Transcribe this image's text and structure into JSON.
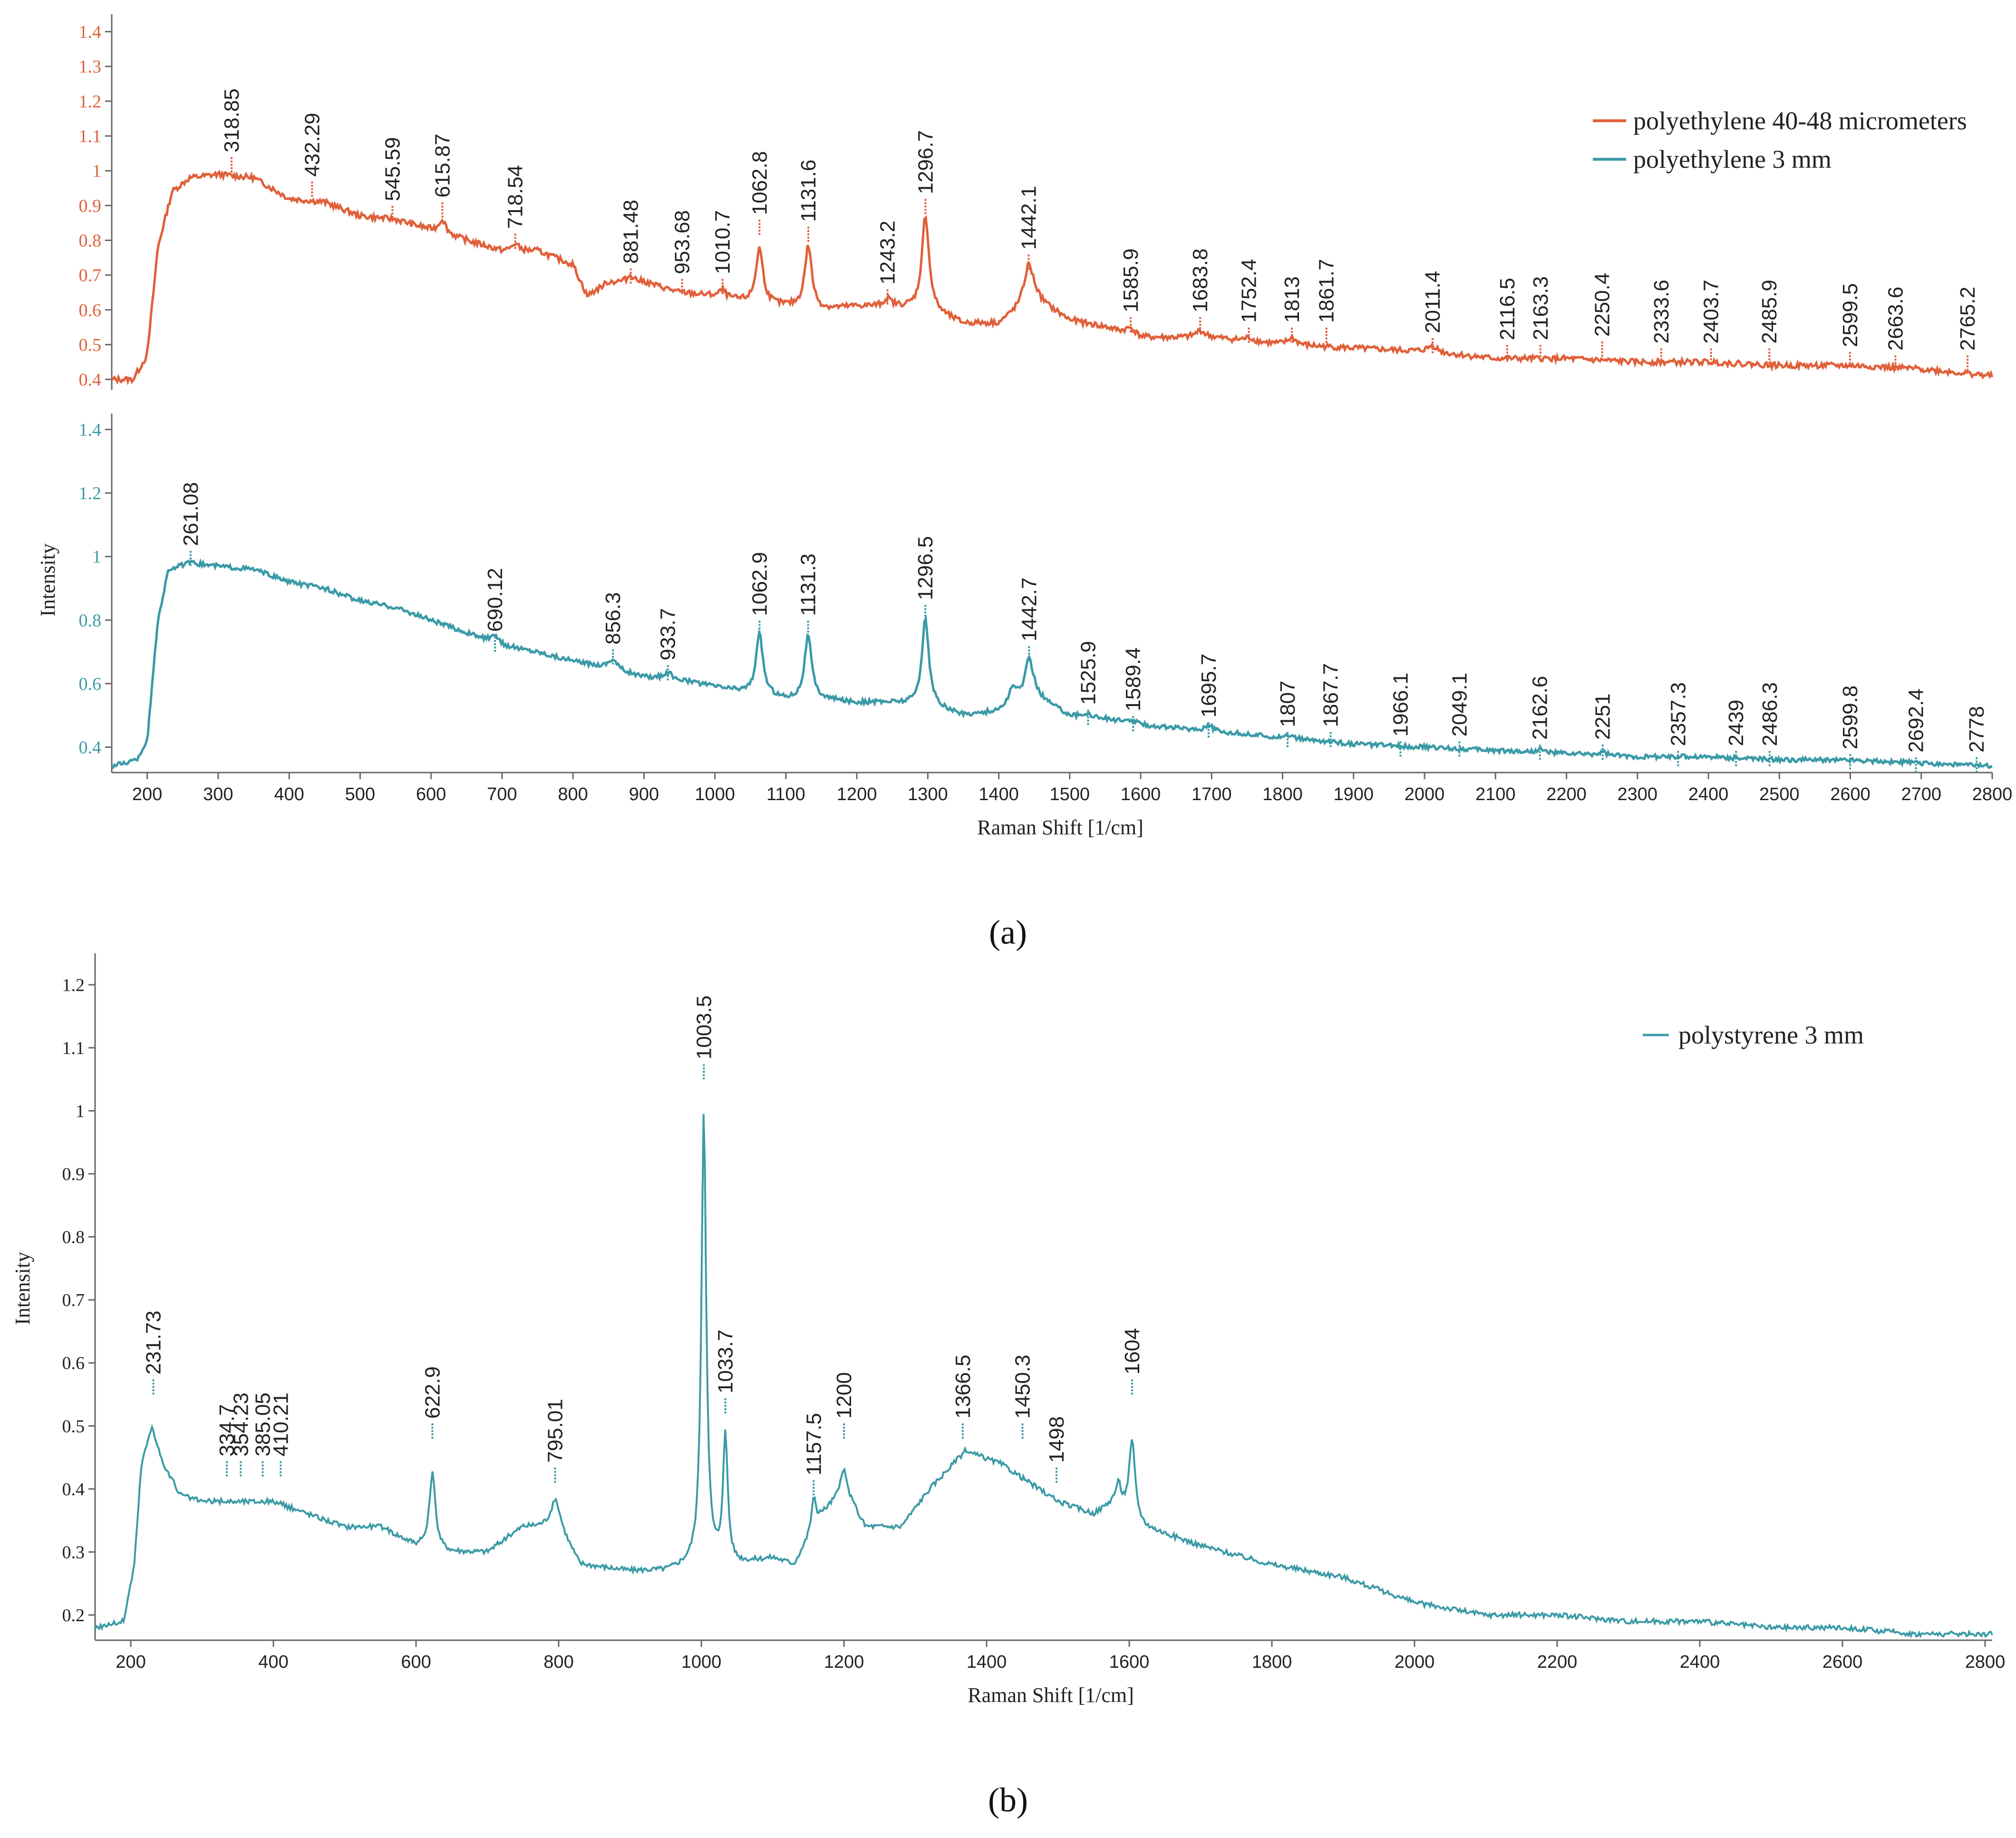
{
  "colors": {
    "pe_small": "#e0603a",
    "pe_large": "#3a9aa6",
    "ps": "#3a9aa6",
    "axis": "#666666",
    "text": "#222222"
  },
  "chart_data": [
    {
      "id": "a-top",
      "type": "line",
      "panel_label": "(a)",
      "series_name": "polyethylene 40-48 micrometers",
      "ylim": [
        0.37,
        1.45
      ],
      "xlim": [
        150,
        2800
      ],
      "yticks": [
        0.4,
        0.5,
        0.6,
        0.7,
        0.8,
        0.9,
        1,
        1.1,
        1.2,
        1.3,
        1.4
      ],
      "ytick_labels": [
        "0.4",
        "0.5",
        "0.6",
        "0.7",
        "0.8",
        "0.9",
        "1",
        "1.1",
        "1.2",
        "1.3",
        "1.4"
      ],
      "baseline": [
        [
          150,
          0.4
        ],
        [
          180,
          0.4
        ],
        [
          200,
          0.47
        ],
        [
          215,
          0.78
        ],
        [
          235,
          0.94
        ],
        [
          260,
          0.98
        ],
        [
          300,
          0.99
        ],
        [
          350,
          0.98
        ],
        [
          400,
          0.92
        ],
        [
          450,
          0.91
        ],
        [
          500,
          0.87
        ],
        [
          550,
          0.86
        ],
        [
          600,
          0.83
        ],
        [
          650,
          0.8
        ],
        [
          700,
          0.77
        ],
        [
          750,
          0.77
        ],
        [
          800,
          0.73
        ],
        [
          820,
          0.64
        ],
        [
          850,
          0.68
        ],
        [
          900,
          0.68
        ],
        [
          950,
          0.65
        ],
        [
          1000,
          0.64
        ],
        [
          1050,
          0.62
        ],
        [
          1100,
          0.61
        ],
        [
          1150,
          0.6
        ],
        [
          1200,
          0.61
        ],
        [
          1250,
          0.61
        ],
        [
          1300,
          0.6
        ],
        [
          1350,
          0.56
        ],
        [
          1400,
          0.56
        ],
        [
          1450,
          0.63
        ],
        [
          1500,
          0.57
        ],
        [
          1550,
          0.55
        ],
        [
          1600,
          0.52
        ],
        [
          1700,
          0.52
        ],
        [
          1800,
          0.5
        ],
        [
          1900,
          0.49
        ],
        [
          2000,
          0.48
        ],
        [
          2100,
          0.46
        ],
        [
          2200,
          0.46
        ],
        [
          2300,
          0.45
        ],
        [
          2400,
          0.45
        ],
        [
          2500,
          0.44
        ],
        [
          2600,
          0.44
        ],
        [
          2700,
          0.43
        ],
        [
          2800,
          0.41
        ]
      ],
      "peaks": [
        [
          615.87,
          0.04,
          6
        ],
        [
          718.54,
          0.02,
          6
        ],
        [
          881.48,
          0.02,
          6
        ],
        [
          1010.7,
          0.02,
          5
        ],
        [
          1062.8,
          0.16,
          6
        ],
        [
          1131.6,
          0.18,
          6
        ],
        [
          1243.2,
          0.02,
          6
        ],
        [
          1296.7,
          0.27,
          6
        ],
        [
          1442.1,
          0.11,
          8
        ],
        [
          1585.9,
          0.02,
          8
        ],
        [
          1683.8,
          0.02,
          8
        ],
        [
          1752.4,
          0.01,
          8
        ],
        [
          1813,
          0.02,
          8
        ],
        [
          2011.4,
          0.02,
          8
        ]
      ],
      "noise": 0.008,
      "labels": [
        {
          "x": 318.85,
          "text": "318.85",
          "level": 1.05
        },
        {
          "x": 432.29,
          "text": "432.29",
          "level": 0.98
        },
        {
          "x": 545.59,
          "text": "545.59",
          "level": 0.91
        },
        {
          "x": 615.87,
          "text": "615.87",
          "level": 0.92
        },
        {
          "x": 718.54,
          "text": "718.54",
          "level": 0.83
        },
        {
          "x": 881.48,
          "text": "881.48",
          "level": 0.73
        },
        {
          "x": 953.68,
          "text": "953.68",
          "level": 0.7
        },
        {
          "x": 1010.7,
          "text": "1010.7",
          "level": 0.7
        },
        {
          "x": 1062.8,
          "text": "1062.8",
          "level": 0.87
        },
        {
          "x": 1131.6,
          "text": "1131.6",
          "level": 0.85
        },
        {
          "x": 1243.2,
          "text": "1243.2",
          "level": 0.67
        },
        {
          "x": 1296.7,
          "text": "1296.7",
          "level": 0.93
        },
        {
          "x": 1442.1,
          "text": "1442.1",
          "level": 0.77
        },
        {
          "x": 1585.9,
          "text": "1585.9",
          "level": 0.59
        },
        {
          "x": 1683.8,
          "text": "1683.8",
          "level": 0.59
        },
        {
          "x": 1752.4,
          "text": "1752.4",
          "level": 0.56
        },
        {
          "x": 1813,
          "text": "1813",
          "level": 0.56
        },
        {
          "x": 1861.7,
          "text": "1861.7",
          "level": 0.56
        },
        {
          "x": 2011.4,
          "text": "2011.4",
          "level": 0.53
        },
        {
          "x": 2116.5,
          "text": "2116.5",
          "level": 0.51
        },
        {
          "x": 2163.3,
          "text": "2163.3",
          "level": 0.51
        },
        {
          "x": 2250.4,
          "text": "2250.4",
          "level": 0.52
        },
        {
          "x": 2333.6,
          "text": "2333.6",
          "level": 0.5
        },
        {
          "x": 2403.7,
          "text": "2403.7",
          "level": 0.5
        },
        {
          "x": 2485.9,
          "text": "2485.9",
          "level": 0.5
        },
        {
          "x": 2599.5,
          "text": "2599.5",
          "level": 0.49
        },
        {
          "x": 2663.6,
          "text": "2663.6",
          "level": 0.48
        },
        {
          "x": 2765.2,
          "text": "2765.2",
          "level": 0.48
        }
      ]
    },
    {
      "id": "a-bottom",
      "type": "line",
      "series_name": "polyethylene 3 mm",
      "ylim": [
        0.32,
        1.45
      ],
      "xlim": [
        150,
        2800
      ],
      "yticks": [
        0.4,
        0.6,
        0.8,
        1,
        1.2,
        1.4
      ],
      "ytick_labels": [
        "0.4",
        "0.6",
        "0.8",
        "1",
        "1.2",
        "1.4"
      ],
      "ylabel": "Intensity",
      "xlabel": "Raman Shift [1/cm]",
      "xticks": [
        200,
        300,
        400,
        500,
        600,
        700,
        800,
        900,
        1000,
        1100,
        1200,
        1300,
        1400,
        1500,
        1600,
        1700,
        1800,
        1900,
        2000,
        2100,
        2200,
        2300,
        2400,
        2500,
        2600,
        2700,
        2800
      ],
      "xtick_labels": [
        "200",
        "300",
        "400",
        "500",
        "600",
        "700",
        "800",
        "900",
        "1000",
        "1100",
        "1200",
        "1300",
        "1400",
        "1500",
        "1600",
        "1700",
        "1800",
        "1900",
        "2000",
        "2100",
        "2200",
        "2300",
        "2400",
        "2500",
        "2600",
        "2700",
        "2800"
      ],
      "baseline": [
        [
          150,
          0.34
        ],
        [
          185,
          0.36
        ],
        [
          200,
          0.42
        ],
        [
          215,
          0.8
        ],
        [
          230,
          0.96
        ],
        [
          260,
          0.98
        ],
        [
          300,
          0.97
        ],
        [
          350,
          0.96
        ],
        [
          400,
          0.92
        ],
        [
          450,
          0.9
        ],
        [
          500,
          0.86
        ],
        [
          550,
          0.84
        ],
        [
          600,
          0.8
        ],
        [
          650,
          0.76
        ],
        [
          700,
          0.72
        ],
        [
          750,
          0.7
        ],
        [
          800,
          0.67
        ],
        [
          850,
          0.65
        ],
        [
          900,
          0.62
        ],
        [
          950,
          0.61
        ],
        [
          1000,
          0.59
        ],
        [
          1050,
          0.57
        ],
        [
          1100,
          0.55
        ],
        [
          1150,
          0.55
        ],
        [
          1200,
          0.54
        ],
        [
          1250,
          0.54
        ],
        [
          1300,
          0.53
        ],
        [
          1350,
          0.5
        ],
        [
          1400,
          0.51
        ],
        [
          1450,
          0.56
        ],
        [
          1500,
          0.5
        ],
        [
          1550,
          0.49
        ],
        [
          1600,
          0.47
        ],
        [
          1700,
          0.45
        ],
        [
          1800,
          0.43
        ],
        [
          1900,
          0.41
        ],
        [
          2000,
          0.4
        ],
        [
          2100,
          0.39
        ],
        [
          2200,
          0.38
        ],
        [
          2300,
          0.37
        ],
        [
          2400,
          0.37
        ],
        [
          2500,
          0.36
        ],
        [
          2600,
          0.36
        ],
        [
          2700,
          0.35
        ],
        [
          2800,
          0.34
        ]
      ],
      "peaks": [
        [
          690.12,
          0.02,
          8
        ],
        [
          856.3,
          0.03,
          8
        ],
        [
          933.7,
          0.02,
          8
        ],
        [
          1062.9,
          0.19,
          6
        ],
        [
          1131.3,
          0.2,
          6
        ],
        [
          1296.5,
          0.27,
          6
        ],
        [
          1420,
          0.05,
          8
        ],
        [
          1442.7,
          0.12,
          7
        ],
        [
          1525.9,
          0.01,
          6
        ],
        [
          1589.4,
          0.01,
          6
        ],
        [
          1695.7,
          0.02,
          6
        ],
        [
          1807,
          0.01,
          6
        ],
        [
          2162.6,
          0.01,
          6
        ],
        [
          2251,
          0.01,
          6
        ]
      ],
      "noise": 0.007,
      "labels": [
        {
          "x": 261.08,
          "text": "261.08",
          "level": 1.03
        },
        {
          "x": 690.12,
          "text": "690.12",
          "level": 0.76
        },
        {
          "x": 856.3,
          "text": "856.3",
          "level": 0.72
        },
        {
          "x": 933.7,
          "text": "933.7",
          "level": 0.67
        },
        {
          "x": 1062.9,
          "text": "1062.9",
          "level": 0.81
        },
        {
          "x": 1131.3,
          "text": "1131.3",
          "level": 0.81
        },
        {
          "x": 1296.5,
          "text": "1296.5",
          "level": 0.86
        },
        {
          "x": 1442.7,
          "text": "1442.7",
          "level": 0.73
        },
        {
          "x": 1525.9,
          "text": "1525.9",
          "level": 0.53
        },
        {
          "x": 1589.4,
          "text": "1589.4",
          "level": 0.51
        },
        {
          "x": 1695.7,
          "text": "1695.7",
          "level": 0.49
        },
        {
          "x": 1807,
          "text": "1807",
          "level": 0.46
        },
        {
          "x": 1867.7,
          "text": "1867.7",
          "level": 0.46
        },
        {
          "x": 1966.1,
          "text": "1966.1",
          "level": 0.43
        },
        {
          "x": 2049.1,
          "text": "2049.1",
          "level": 0.43
        },
        {
          "x": 2162.6,
          "text": "2162.6",
          "level": 0.42
        },
        {
          "x": 2251,
          "text": "2251",
          "level": 0.42
        },
        {
          "x": 2357.3,
          "text": "2357.3",
          "level": 0.4
        },
        {
          "x": 2439,
          "text": "2439",
          "level": 0.4
        },
        {
          "x": 2486.3,
          "text": "2486.3",
          "level": 0.4
        },
        {
          "x": 2599.8,
          "text": "2599.8",
          "level": 0.39
        },
        {
          "x": 2692.4,
          "text": "2692.4",
          "level": 0.38
        },
        {
          "x": 2778,
          "text": "2778",
          "level": 0.38
        }
      ]
    },
    {
      "id": "b",
      "type": "line",
      "panel_label": "(b)",
      "series_name": "polystyrene 3 mm",
      "ylim": [
        0.16,
        1.25
      ],
      "xlim": [
        150,
        2810
      ],
      "yticks": [
        0.2,
        0.3,
        0.4,
        0.5,
        0.6,
        0.7,
        0.8,
        0.9,
        1,
        1.1,
        1.2
      ],
      "ytick_labels": [
        "0.2",
        "0.3",
        "0.4",
        "0.5",
        "0.6",
        "0.7",
        "0.8",
        "0.9",
        "1",
        "1.1",
        "1.2"
      ],
      "ylabel": "Intensity",
      "xlabel": "Raman Shift [1/cm]",
      "xticks": [
        200,
        400,
        600,
        800,
        1000,
        1200,
        1400,
        1600,
        1800,
        2000,
        2200,
        2400,
        2600,
        2800
      ],
      "xtick_labels": [
        "200",
        "400",
        "600",
        "800",
        "1000",
        "1200",
        "1400",
        "1600",
        "1800",
        "2000",
        "2200",
        "2400",
        "2600",
        "2800"
      ],
      "baseline": [
        [
          150,
          0.18
        ],
        [
          190,
          0.19
        ],
        [
          205,
          0.28
        ],
        [
          215,
          0.44
        ],
        [
          230,
          0.5
        ],
        [
          245,
          0.44
        ],
        [
          270,
          0.39
        ],
        [
          300,
          0.38
        ],
        [
          350,
          0.38
        ],
        [
          400,
          0.38
        ],
        [
          450,
          0.36
        ],
        [
          500,
          0.34
        ],
        [
          550,
          0.34
        ],
        [
          600,
          0.31
        ],
        [
          650,
          0.3
        ],
        [
          700,
          0.3
        ],
        [
          750,
          0.34
        ],
        [
          800,
          0.34
        ],
        [
          830,
          0.28
        ],
        [
          900,
          0.27
        ],
        [
          950,
          0.27
        ],
        [
          990,
          0.28
        ],
        [
          1010,
          0.28
        ],
        [
          1050,
          0.28
        ],
        [
          1100,
          0.29
        ],
        [
          1130,
          0.28
        ],
        [
          1170,
          0.36
        ],
        [
          1200,
          0.4
        ],
        [
          1230,
          0.34
        ],
        [
          1280,
          0.34
        ],
        [
          1320,
          0.4
        ],
        [
          1370,
          0.46
        ],
        [
          1420,
          0.44
        ],
        [
          1460,
          0.41
        ],
        [
          1500,
          0.38
        ],
        [
          1550,
          0.36
        ],
        [
          1580,
          0.38
        ],
        [
          1620,
          0.34
        ],
        [
          1700,
          0.31
        ],
        [
          1800,
          0.28
        ],
        [
          1900,
          0.26
        ],
        [
          2000,
          0.22
        ],
        [
          2100,
          0.2
        ],
        [
          2200,
          0.2
        ],
        [
          2300,
          0.19
        ],
        [
          2400,
          0.19
        ],
        [
          2500,
          0.18
        ],
        [
          2600,
          0.18
        ],
        [
          2700,
          0.17
        ],
        [
          2810,
          0.17
        ]
      ],
      "peaks": [
        [
          622.9,
          0.12,
          5
        ],
        [
          795.01,
          0.04,
          8
        ],
        [
          1003.5,
          0.72,
          4
        ],
        [
          1033.7,
          0.2,
          4
        ],
        [
          1157.5,
          0.05,
          4
        ],
        [
          1200,
          0.03,
          5
        ],
        [
          1585,
          0.03,
          4
        ],
        [
          1604,
          0.12,
          5
        ]
      ],
      "noise": 0.004,
      "labels": [
        {
          "x": 231.73,
          "text": "231.73",
          "level": 0.58
        },
        {
          "x": 334.7,
          "text": "334.7",
          "level": 0.45
        },
        {
          "x": 354.23,
          "text": "354.23",
          "level": 0.45
        },
        {
          "x": 385.05,
          "text": "385.05",
          "level": 0.45
        },
        {
          "x": 410.21,
          "text": "410.21",
          "level": 0.45
        },
        {
          "x": 622.9,
          "text": "622.9",
          "level": 0.51
        },
        {
          "x": 795.01,
          "text": "795.01",
          "level": 0.44
        },
        {
          "x": 1003.5,
          "text": "1003.5",
          "level": 1.08
        },
        {
          "x": 1033.7,
          "text": "1033.7",
          "level": 0.55
        },
        {
          "x": 1157.5,
          "text": "1157.5",
          "level": 0.42
        },
        {
          "x": 1200,
          "text": "1200",
          "level": 0.51
        },
        {
          "x": 1366.5,
          "text": "1366.5",
          "level": 0.51
        },
        {
          "x": 1450.3,
          "text": "1450.3",
          "level": 0.51
        },
        {
          "x": 1498,
          "text": "1498",
          "level": 0.44
        },
        {
          "x": 1604,
          "text": "1604",
          "level": 0.58
        }
      ]
    }
  ]
}
